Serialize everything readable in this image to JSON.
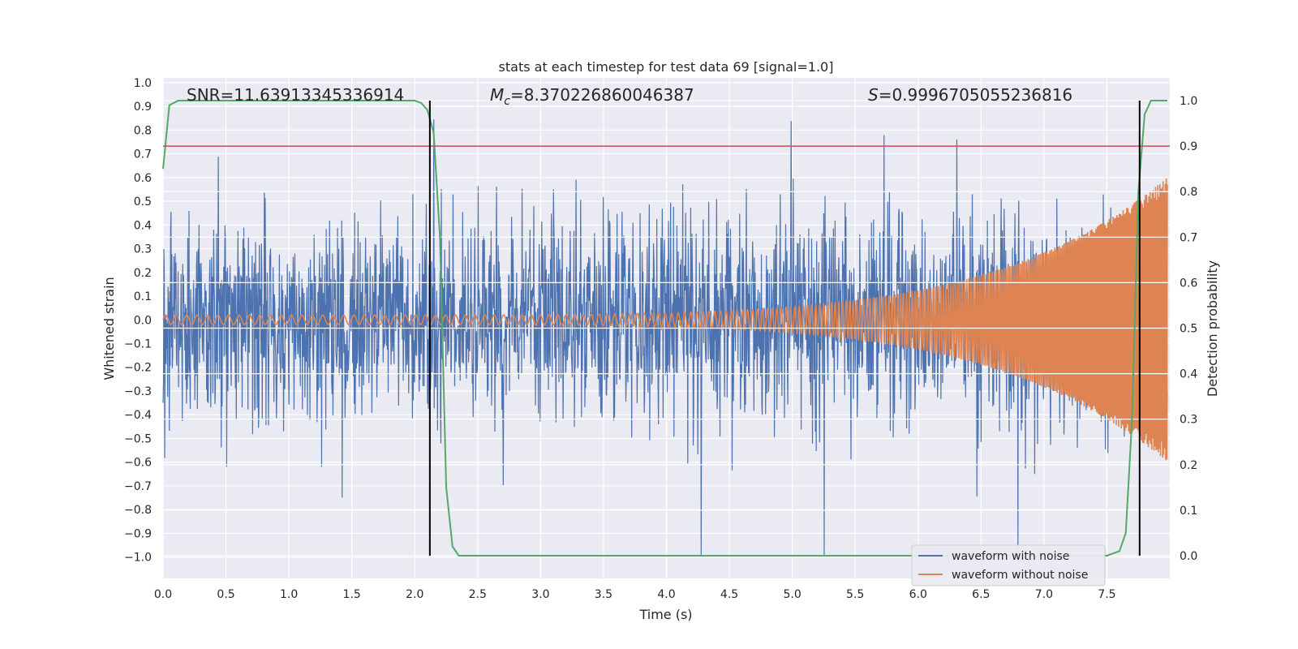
{
  "chart_data": {
    "type": "line",
    "title": "stats at each timestep for test data 69 [signal=1.0]",
    "xlabel": "Time (s)",
    "ylabel": "Whitened strain",
    "y2label": "Detection probability",
    "xlim": [
      0.0,
      8.0
    ],
    "ylim": [
      -1.09,
      1.02
    ],
    "y2lim": [
      -0.05,
      1.05
    ],
    "xticks": [
      "0.0",
      "0.5",
      "1.0",
      "1.5",
      "2.0",
      "2.5",
      "3.0",
      "3.5",
      "4.0",
      "4.5",
      "5.0",
      "5.5",
      "6.0",
      "6.5",
      "7.0",
      "7.5"
    ],
    "yticks": [
      "1.0",
      "0.9",
      "0.8",
      "0.7",
      "0.6",
      "0.5",
      "0.4",
      "0.3",
      "0.2",
      "0.1",
      "0.0",
      "−0.1",
      "−0.2",
      "−0.3",
      "−0.4",
      "−0.5",
      "−0.6",
      "−0.7",
      "−0.8",
      "−0.9",
      "−1.0"
    ],
    "y2ticks": [
      "1.0",
      "0.9",
      "0.8",
      "0.7",
      "0.6",
      "0.5",
      "0.4",
      "0.3",
      "0.2",
      "0.1",
      "0.0"
    ],
    "grid": true,
    "legend_position": "bottom-right",
    "annotations": {
      "snr": "SNR=11.63913345336914",
      "mc_symbol": "M",
      "mc_sub": "c",
      "mc_value": "=8.370226860046387",
      "s_symbol": "S",
      "s_value": "=0.9996705055236816"
    },
    "threshold_y2": 0.9,
    "vlines_x": [
      2.12,
      7.76
    ],
    "series": [
      {
        "name": "waveform with noise",
        "color": "#4c72b0",
        "description_values": "noise envelope approx ±0.5 with spikes to ±0.9, sampled"
      },
      {
        "name": "waveform without noise",
        "color": "#dd8452",
        "chirp": {
          "start_amp": 0.02,
          "end_amp": 0.6,
          "start_freq_hz": 12,
          "end_freq_hz": 120,
          "end_time": 7.98
        }
      },
      {
        "legend": false,
        "color": "#55a868",
        "detection_probability": {
          "x": [
            0.0,
            0.05,
            0.12,
            0.2,
            0.3,
            0.5,
            1.0,
            1.5,
            1.9,
            2.0,
            2.05,
            2.1,
            2.15,
            2.2,
            2.25,
            2.3,
            2.35,
            2.5,
            3.0,
            4.0,
            5.0,
            6.0,
            7.0,
            7.5,
            7.6,
            7.65,
            7.7,
            7.75,
            7.8,
            7.85,
            7.9,
            7.95,
            7.98
          ],
          "y": [
            0.85,
            0.99,
            1.0,
            1.0,
            1.0,
            1.0,
            1.0,
            1.0,
            1.0,
            1.0,
            0.995,
            0.98,
            0.93,
            0.7,
            0.15,
            0.02,
            0.0,
            0.0,
            0.0,
            0.0,
            0.0,
            0.0,
            0.0,
            0.0,
            0.01,
            0.05,
            0.3,
            0.8,
            0.97,
            1.0,
            1.0,
            1.0,
            1.0
          ]
        }
      }
    ],
    "threshold_color": "#c44e52"
  }
}
